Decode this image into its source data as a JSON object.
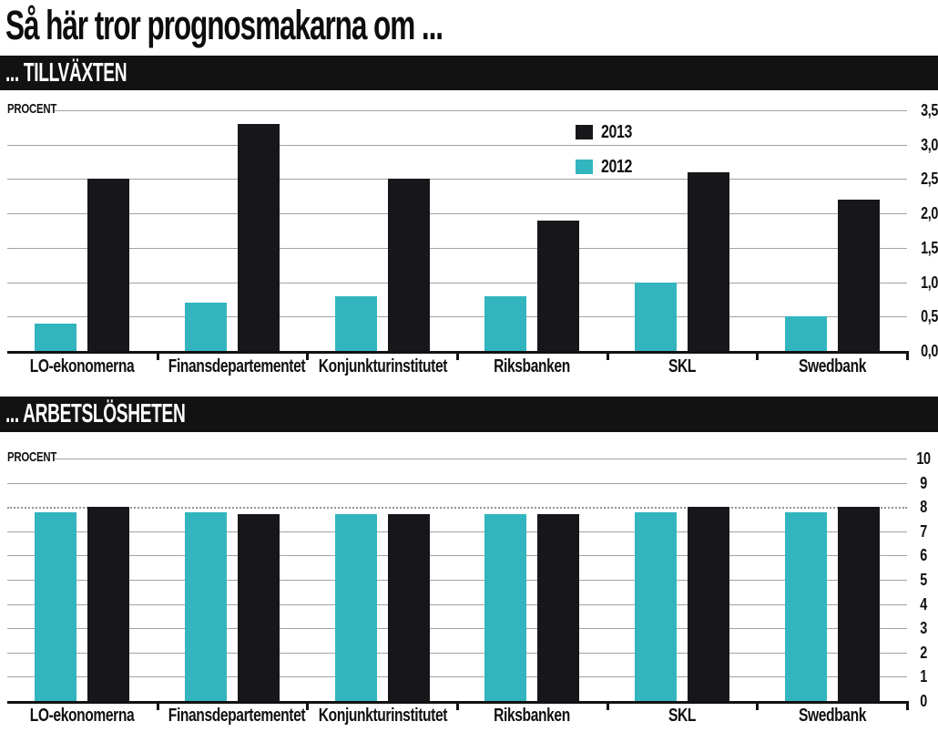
{
  "page": {
    "title": "Så här tror prognosmakarna om ..."
  },
  "chart_data": [
    {
      "type": "bar",
      "title": "... TILLVÄXTEN",
      "ylabel": "PROCENT",
      "categories": [
        "LO-ekonomerna",
        "Finansdepartementet",
        "Konjunkturinstitutet",
        "Riksbanken",
        "SKL",
        "Swedbank"
      ],
      "series": [
        {
          "name": "2013",
          "color": "#17171b",
          "values": [
            2.5,
            3.3,
            2.5,
            1.9,
            2.6,
            2.2
          ]
        },
        {
          "name": "2012",
          "color": "#32b5be",
          "values": [
            0.4,
            0.7,
            0.8,
            0.8,
            1.0,
            0.5
          ]
        }
      ],
      "bar_order": [
        "2012",
        "2013"
      ],
      "ylim": [
        0,
        3.5
      ],
      "ytick_step": 0.5,
      "ytick_labels": [
        "0,0",
        "0,5",
        "1,0",
        "1,5",
        "2,0",
        "2,5",
        "3,0",
        "3,5"
      ],
      "grid": true,
      "legend_position": "inside-top-center",
      "unit": "percent"
    },
    {
      "type": "bar",
      "title": "... ARBETSLÖSHETEN",
      "ylabel": "PROCENT",
      "categories": [
        "LO-ekonomerna",
        "Finansdepartementet",
        "Konjunkturinstitutet",
        "Riksbanken",
        "SKL",
        "Swedbank"
      ],
      "series": [
        {
          "name": "2013",
          "color": "#17171b",
          "values": [
            8.0,
            7.7,
            7.7,
            7.7,
            8.0,
            8.0
          ]
        },
        {
          "name": "2012",
          "color": "#32b5be",
          "values": [
            7.8,
            7.8,
            7.7,
            7.7,
            7.8,
            7.8
          ]
        }
      ],
      "bar_order": [
        "2012",
        "2013"
      ],
      "ylim": [
        0,
        10
      ],
      "ytick_step": 1,
      "ytick_labels": [
        "0",
        "1",
        "2",
        "3",
        "4",
        "5",
        "6",
        "7",
        "8",
        "9",
        "10"
      ],
      "dotted_gridline": 8,
      "grid": true,
      "legend_position": "none",
      "unit": "percent"
    }
  ]
}
